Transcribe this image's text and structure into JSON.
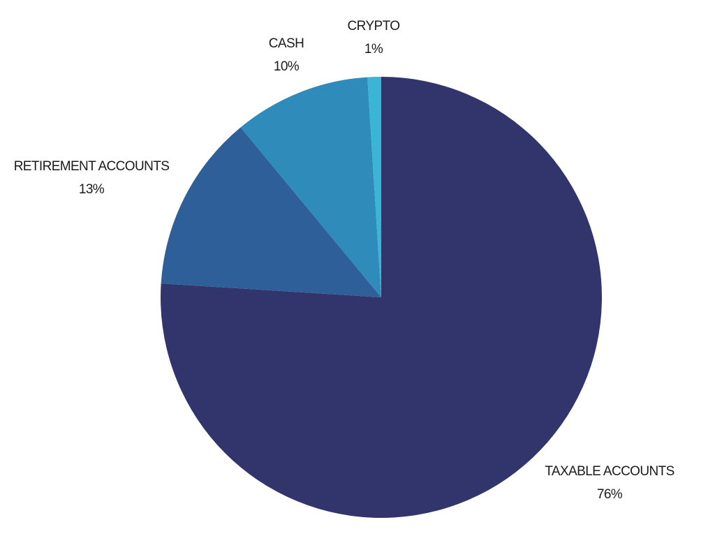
{
  "chart_data": {
    "type": "pie",
    "categories": [
      "TAXABLE ACCOUNTS",
      "RETIREMENT ACCOUNTS",
      "CASH",
      "CRYPTO"
    ],
    "values": [
      76,
      13,
      10,
      1
    ],
    "value_labels": [
      "76%",
      "13%",
      "10%",
      "1%"
    ],
    "colors": [
      "#31356b",
      "#2e5f98",
      "#2e8bba",
      "#3ab5d6"
    ],
    "start_angle": 0,
    "direction": "clockwise"
  }
}
